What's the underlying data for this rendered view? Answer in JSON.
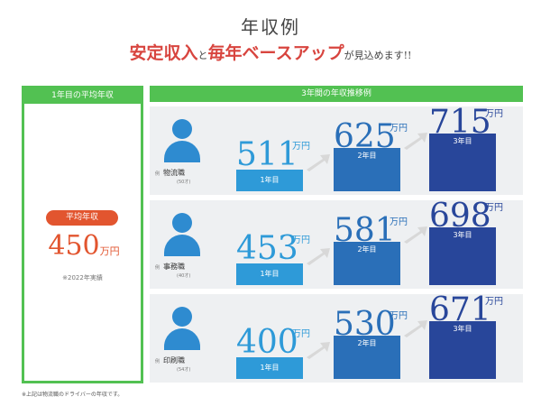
{
  "title": "年収例",
  "subtitle": {
    "part1": "安定収入",
    "part2": "と",
    "part3": "毎年ベースアップ",
    "part4": "が見込めます!!"
  },
  "left_panel": {
    "header": "1年目の平均年収",
    "badge": "平均年収",
    "value": "450",
    "unit": "万円",
    "note": "※2022年実績"
  },
  "right_panel": {
    "header": "3年間の年収推移例"
  },
  "rows": [
    {
      "tag": "例",
      "role": "物流職",
      "age": "(50才)",
      "years": [
        {
          "value": "511",
          "unit": "万円",
          "label": "1年目"
        },
        {
          "value": "625",
          "unit": "万円",
          "label": "2年目"
        },
        {
          "value": "715",
          "unit": "万円",
          "label": "3年目"
        }
      ]
    },
    {
      "tag": "例",
      "role": "事務職",
      "age": "(40才)",
      "years": [
        {
          "value": "453",
          "unit": "万円",
          "label": "1年目"
        },
        {
          "value": "581",
          "unit": "万円",
          "label": "2年目"
        },
        {
          "value": "698",
          "unit": "万円",
          "label": "3年目"
        }
      ]
    },
    {
      "tag": "例",
      "role": "印刷職",
      "age": "(54才)",
      "years": [
        {
          "value": "400",
          "unit": "万円",
          "label": "1年目"
        },
        {
          "value": "530",
          "unit": "万円",
          "label": "2年目"
        },
        {
          "value": "671",
          "unit": "万円",
          "label": "3年目"
        }
      ]
    }
  ],
  "footer_note": "※上記は物流職のドライバーの年収です。",
  "colors": {
    "green": "#52c152",
    "orange": "#e2552f",
    "red": "#d8453f",
    "year1": "#2e9ad8",
    "year2": "#2a6fb8",
    "year3": "#28469a",
    "person": "#2e8bd0"
  }
}
